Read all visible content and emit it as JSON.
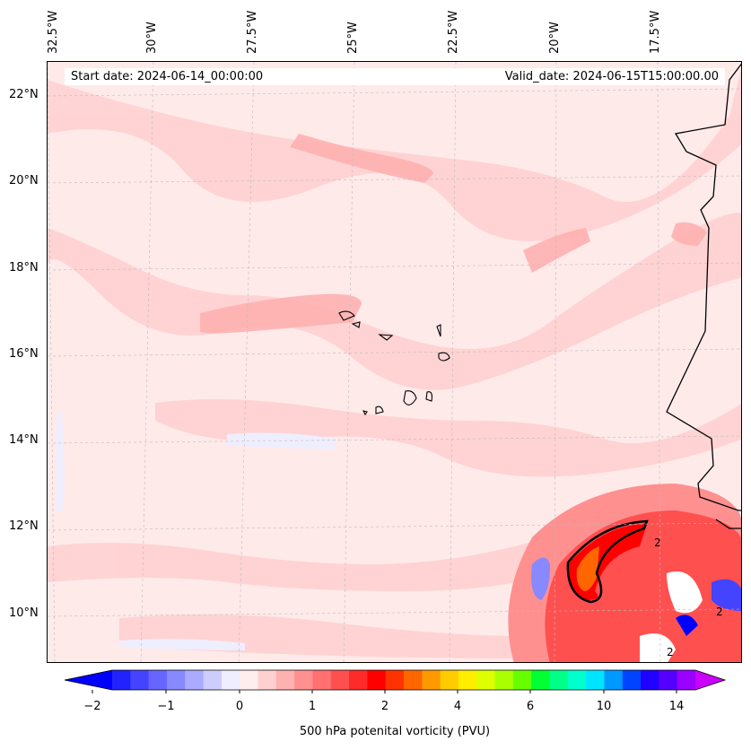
{
  "header": {
    "start_date": "Start date: 2024-06-14_00:00:00",
    "valid_date": "Valid_date: 2024-06-15T15:00:00.00"
  },
  "axes": {
    "longitude_labels": [
      "32.5°W",
      "30°W",
      "27.5°W",
      "25°W",
      "22.5°W",
      "20°W",
      "17.5°W"
    ],
    "latitude_labels": [
      "22°N",
      "20°N",
      "18°N",
      "16°N",
      "14°N",
      "12°N",
      "10°N"
    ]
  },
  "map": {
    "variable": "500 hPa potential vorticity",
    "contour_label_value": "2",
    "features": [
      "Cabo Verde islands",
      "West African coastline",
      "strong PV maximum off Guinea coast"
    ]
  },
  "colorbar": {
    "label": "500 hPa potenital vorticity (PVU)",
    "tick_labels": [
      "−2",
      "−1",
      "0",
      "1",
      "2",
      "4",
      "6",
      "10",
      "14"
    ],
    "colors": [
      "#0000ff",
      "#2222ff",
      "#4444ff",
      "#6666ff",
      "#8888ff",
      "#aaaaff",
      "#ccccff",
      "#eeeeff",
      "#ffeeee",
      "#ffd0d0",
      "#ffb0b0",
      "#ff9090",
      "#ff7070",
      "#ff5050",
      "#ff2a2a",
      "#ff0000",
      "#ff3300",
      "#ff6600",
      "#ff9900",
      "#ffcc00",
      "#ffee00",
      "#ddff00",
      "#aaff00",
      "#66ff00",
      "#00ff33",
      "#00ff88",
      "#00ffcc",
      "#00e5ff",
      "#0099ff",
      "#0044ff",
      "#2200ff",
      "#5500ff",
      "#9900ff",
      "#cc00ff"
    ]
  }
}
